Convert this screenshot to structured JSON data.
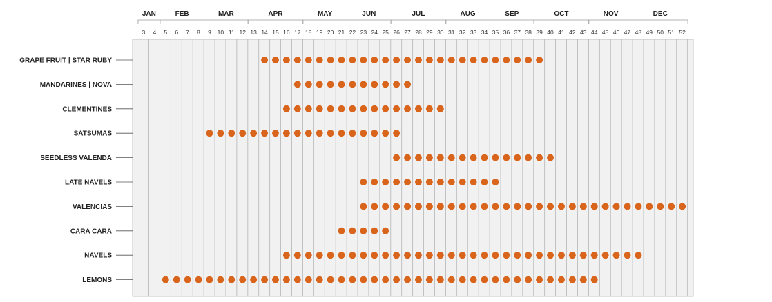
{
  "chart_data": {
    "type": "scatter",
    "title": "",
    "xlabel": "",
    "ylabel": "",
    "x_axis": "week",
    "xlim": [
      2,
      53
    ],
    "months": [
      {
        "label": "JAN",
        "start": 3,
        "end": 4
      },
      {
        "label": "FEB",
        "start": 5,
        "end": 8
      },
      {
        "label": "MAR",
        "start": 9,
        "end": 12
      },
      {
        "label": "APR",
        "start": 13,
        "end": 17
      },
      {
        "label": "MAY",
        "start": 18,
        "end": 21
      },
      {
        "label": "JUN",
        "start": 22,
        "end": 25
      },
      {
        "label": "JUL",
        "start": 26,
        "end": 30
      },
      {
        "label": "AUG",
        "start": 31,
        "end": 34
      },
      {
        "label": "SEP",
        "start": 35,
        "end": 38
      },
      {
        "label": "OCT",
        "start": 39,
        "end": 43
      },
      {
        "label": "NOV",
        "start": 44,
        "end": 47
      },
      {
        "label": "DEC",
        "start": 48,
        "end": 52
      }
    ],
    "weeks": [
      3,
      4,
      5,
      6,
      7,
      8,
      9,
      10,
      11,
      12,
      13,
      14,
      15,
      16,
      17,
      18,
      19,
      20,
      21,
      22,
      23,
      24,
      25,
      26,
      27,
      28,
      29,
      30,
      31,
      32,
      33,
      34,
      35,
      36,
      37,
      38,
      39,
      40,
      41,
      42,
      43,
      44,
      45,
      46,
      47,
      48,
      49,
      50,
      51,
      52
    ],
    "series": [
      {
        "name": "GRAPE FRUIT | STAR RUBY",
        "start_week": 14,
        "end_week": 39
      },
      {
        "name": "MANDARINES | NOVA",
        "start_week": 17,
        "end_week": 27
      },
      {
        "name": "CLEMENTINES",
        "start_week": 16,
        "end_week": 30
      },
      {
        "name": "SATSUMAS",
        "start_week": 9,
        "end_week": 26
      },
      {
        "name": "SEEDLESS VALENDA",
        "start_week": 26,
        "end_week": 40
      },
      {
        "name": "LATE NAVELS",
        "start_week": 23,
        "end_week": 35
      },
      {
        "name": "VALENCIAS",
        "start_week": 23,
        "end_week": 52
      },
      {
        "name": "CARA CARA",
        "start_week": 21,
        "end_week": 25
      },
      {
        "name": "NAVELS",
        "start_week": 16,
        "end_week": 48
      },
      {
        "name": "LEMONS",
        "start_week": 5,
        "end_week": 44
      }
    ],
    "grid": true,
    "colors": {
      "dot": "#d9641c",
      "plot_background": "#f1f1f1",
      "grid": "#b5b5b5"
    }
  }
}
